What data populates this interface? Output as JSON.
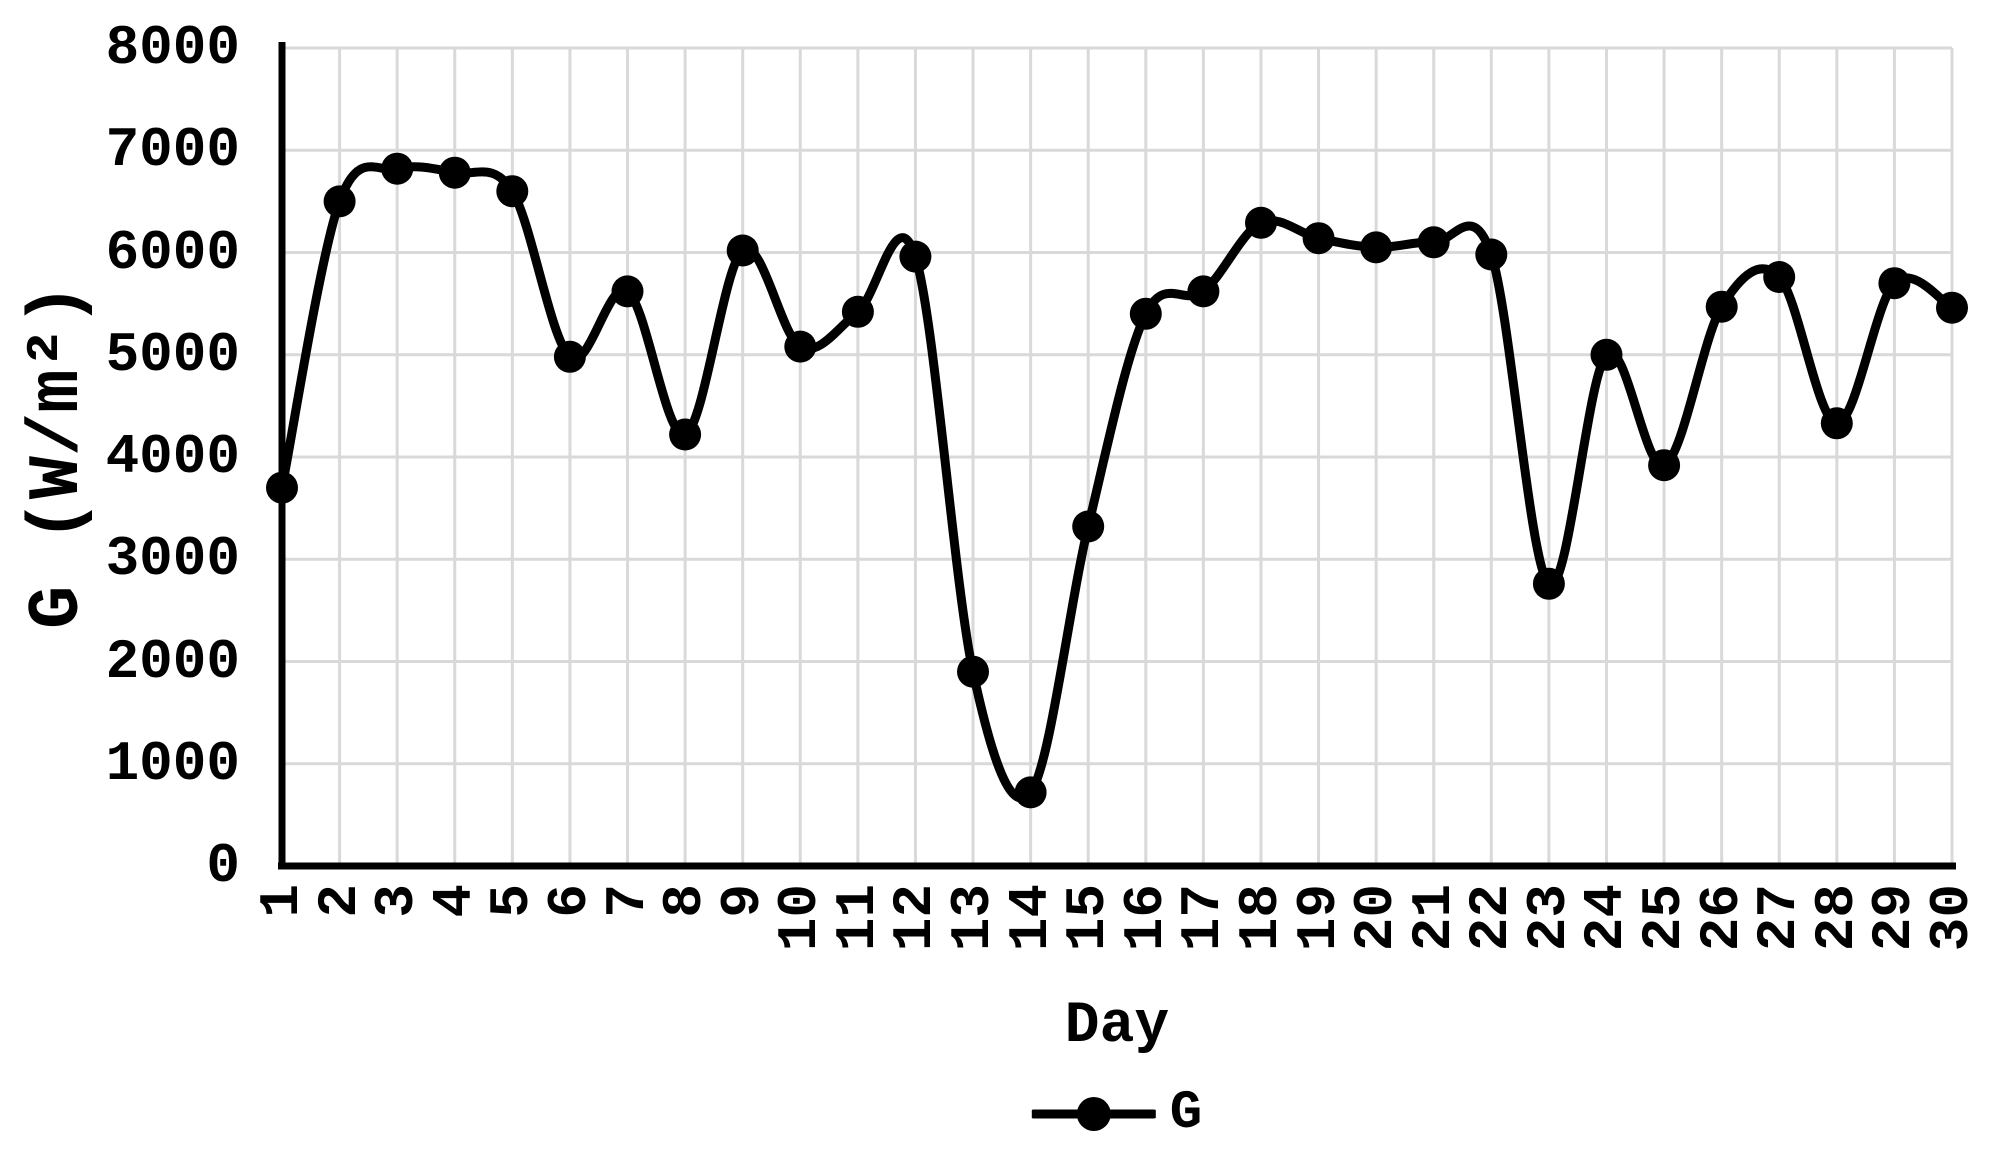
{
  "chart_data": {
    "type": "line",
    "title": "",
    "xlabel": "Day",
    "ylabel": "G (W/m²)",
    "categories": [
      1,
      2,
      3,
      4,
      5,
      6,
      7,
      8,
      9,
      10,
      11,
      12,
      13,
      14,
      15,
      16,
      17,
      18,
      19,
      20,
      21,
      22,
      23,
      24,
      25,
      26,
      27,
      28,
      29,
      30
    ],
    "series": [
      {
        "name": "G",
        "values": [
          3700,
          6500,
          6820,
          6780,
          6600,
          4980,
          5620,
          4220,
          6020,
          5080,
          5420,
          5960,
          1900,
          720,
          3320,
          5400,
          5620,
          6290,
          6140,
          6050,
          6100,
          5980,
          2760,
          5000,
          3920,
          5470,
          5760,
          4330,
          5700,
          5460
        ]
      }
    ],
    "ylim": [
      0,
      8000
    ],
    "ytick_step": 1000,
    "grid": true,
    "smoothed_line": true,
    "legend_position": "bottom",
    "marker": "circle",
    "colors": {
      "line": "#000000",
      "marker": "#000000",
      "grid": "#d9d9d9",
      "axis": "#000000",
      "text": "#000000",
      "background": "#ffffff"
    }
  }
}
